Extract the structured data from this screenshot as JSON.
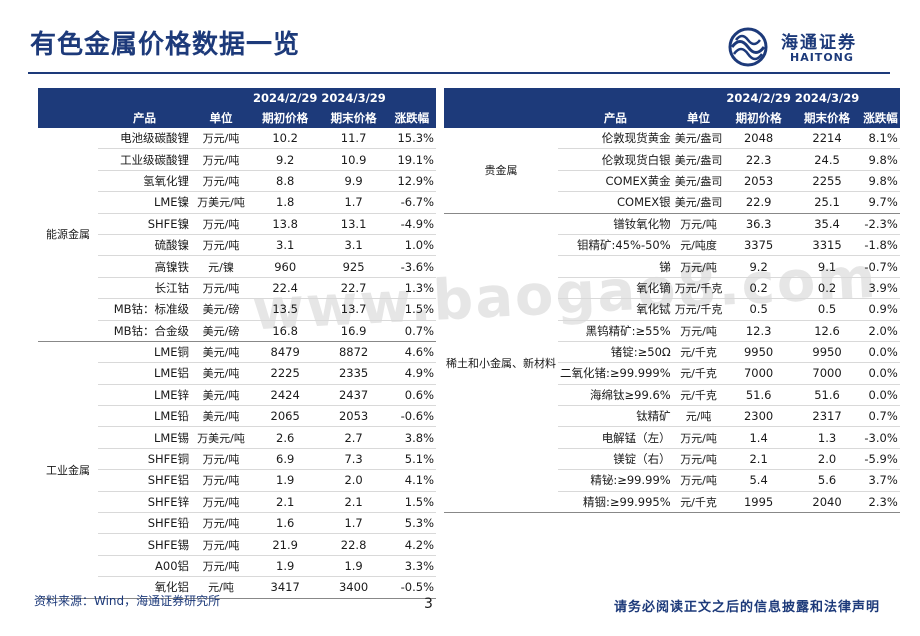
{
  "header": {
    "title": "有色金属价格数据一览",
    "logo_cn": "海通证券",
    "logo_en": "HAITONG"
  },
  "watermark": "www.baogao8.com",
  "colors": {
    "brand": "#1d3a7a"
  },
  "left_table": {
    "date1": "2024/2/29",
    "date2": "2024/3/29",
    "col_product": "产品",
    "col_unit": "单位",
    "col_start": "期初价格",
    "col_end": "期末价格",
    "col_change": "涨跌幅",
    "groups": [
      {
        "category": "能源金属",
        "rows": [
          [
            "电池级碳酸锂",
            "万元/吨",
            "10.2",
            "11.7",
            "15.3%"
          ],
          [
            "工业级碳酸锂",
            "万元/吨",
            "9.2",
            "10.9",
            "19.1%"
          ],
          [
            "氢氧化锂",
            "万元/吨",
            "8.8",
            "9.9",
            "12.9%"
          ],
          [
            "LME镍",
            "万美元/吨",
            "1.8",
            "1.7",
            "-6.7%"
          ],
          [
            "SHFE镍",
            "万元/吨",
            "13.8",
            "13.1",
            "-4.9%"
          ],
          [
            "硫酸镍",
            "万元/吨",
            "3.1",
            "3.1",
            "1.0%"
          ],
          [
            "高镍铁",
            "元/镍",
            "960",
            "925",
            "-3.6%"
          ],
          [
            "长江钴",
            "万元/吨",
            "22.4",
            "22.7",
            "1.3%"
          ],
          [
            "MB钴：标准级",
            "美元/磅",
            "13.5",
            "13.7",
            "1.5%"
          ],
          [
            "MB钴：合金级",
            "美元/磅",
            "16.8",
            "16.9",
            "0.7%"
          ]
        ]
      },
      {
        "category": "工业金属",
        "rows": [
          [
            "LME铜",
            "美元/吨",
            "8479",
            "8872",
            "4.6%"
          ],
          [
            "LME铝",
            "美元/吨",
            "2225",
            "2335",
            "4.9%"
          ],
          [
            "LME锌",
            "美元/吨",
            "2424",
            "2437",
            "0.6%"
          ],
          [
            "LME铅",
            "美元/吨",
            "2065",
            "2053",
            "-0.6%"
          ],
          [
            "LME锡",
            "万美元/吨",
            "2.6",
            "2.7",
            "3.8%"
          ],
          [
            "SHFE铜",
            "万元/吨",
            "6.9",
            "7.3",
            "5.1%"
          ],
          [
            "SHFE铝",
            "万元/吨",
            "1.9",
            "2.0",
            "4.1%"
          ],
          [
            "SHFE锌",
            "万元/吨",
            "2.1",
            "2.1",
            "1.5%"
          ],
          [
            "SHFE铅",
            "万元/吨",
            "1.6",
            "1.7",
            "5.3%"
          ],
          [
            "SHFE锡",
            "万元/吨",
            "21.9",
            "22.8",
            "4.2%"
          ],
          [
            "A00铝",
            "万元/吨",
            "1.9",
            "1.9",
            "3.3%"
          ],
          [
            "氧化铝",
            "元/吨",
            "3417",
            "3400",
            "-0.5%"
          ]
        ]
      }
    ]
  },
  "right_table": {
    "date1": "2024/2/29",
    "date2": "2024/3/29",
    "col_product": "产品",
    "col_unit": "单位",
    "col_start": "期初价格",
    "col_end": "期末价格",
    "col_change": "涨跌幅",
    "groups": [
      {
        "category": "贵金属",
        "rows": [
          [
            "伦敦现货黄金",
            "美元/盎司",
            "2048",
            "2214",
            "8.1%"
          ],
          [
            "伦敦现货白银",
            "美元/盎司",
            "22.3",
            "24.5",
            "9.8%"
          ],
          [
            "COMEX黄金",
            "美元/盎司",
            "2053",
            "2255",
            "9.8%"
          ],
          [
            "COMEX银",
            "美元/盎司",
            "22.9",
            "25.1",
            "9.7%"
          ]
        ]
      },
      {
        "category": "稀土和小金属、新材料",
        "rows": [
          [
            "镨钕氧化物",
            "万元/吨",
            "36.3",
            "35.4",
            "-2.3%"
          ],
          [
            "钼精矿:45%-50%",
            "元/吨度",
            "3375",
            "3315",
            "-1.8%"
          ],
          [
            "锑",
            "万元/吨",
            "9.2",
            "9.1",
            "-0.7%"
          ],
          [
            "氧化镝",
            "万元/千克",
            "0.2",
            "0.2",
            "3.9%"
          ],
          [
            "氧化铽",
            "万元/千克",
            "0.5",
            "0.5",
            "0.9%"
          ],
          [
            "黑钨精矿:≥55%",
            "万元/吨",
            "12.3",
            "12.6",
            "2.0%"
          ],
          [
            "锗锭:≥50Ω",
            "元/千克",
            "9950",
            "9950",
            "0.0%"
          ],
          [
            "二氧化锗:≥99.999%",
            "元/千克",
            "7000",
            "7000",
            "0.0%"
          ],
          [
            "海绵钛≥99.6%",
            "元/千克",
            "51.6",
            "51.6",
            "0.0%"
          ],
          [
            "钛精矿",
            "元/吨",
            "2300",
            "2317",
            "0.7%"
          ],
          [
            "电解锰（左）",
            "万元/吨",
            "1.4",
            "1.3",
            "-3.0%"
          ],
          [
            "镁锭（右）",
            "万元/吨",
            "2.1",
            "2.0",
            "-5.9%"
          ],
          [
            "精铋:≥99.99%",
            "万元/吨",
            "5.4",
            "5.6",
            "3.7%"
          ],
          [
            "精铟:≥99.995%",
            "元/千克",
            "1995",
            "2040",
            "2.3%"
          ]
        ]
      }
    ]
  },
  "footer": {
    "source": "资料来源：Wind，海通证券研究所",
    "page": "3",
    "disclaimer": "请务必阅读正文之后的信息披露和法律声明"
  }
}
